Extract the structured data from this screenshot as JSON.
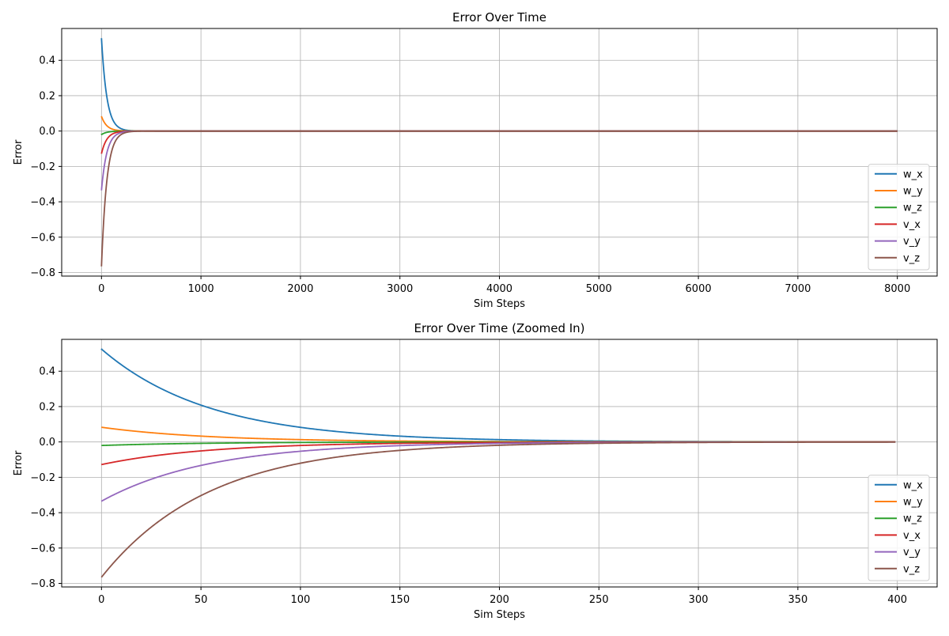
{
  "chart_data": [
    {
      "type": "line",
      "title": "Error Over Time",
      "xlabel": "Sim Steps",
      "ylabel": "Error",
      "xlim": [
        -400,
        8400
      ],
      "ylim": [
        -0.82,
        0.58
      ],
      "xticks": [
        0,
        1000,
        2000,
        3000,
        4000,
        5000,
        6000,
        7000,
        8000
      ],
      "yticks": [
        -0.8,
        -0.6,
        -0.4,
        -0.2,
        0.0,
        0.2,
        0.4
      ],
      "xtick_labels": [
        "0",
        "1000",
        "2000",
        "3000",
        "4000",
        "5000",
        "6000",
        "7000",
        "8000"
      ],
      "ytick_labels": [
        "−0.8",
        "−0.6",
        "−0.4",
        "−0.2",
        "0.0",
        "0.2",
        "0.4"
      ],
      "x_range": [
        0,
        8000
      ],
      "decay_rate": 0.0185,
      "grid": true,
      "legend_position": "lower right",
      "series": [
        {
          "name": "w_x",
          "initial": 0.525,
          "color": "#1f77b4"
        },
        {
          "name": "w_y",
          "initial": 0.083,
          "color": "#ff7f0e"
        },
        {
          "name": "w_z",
          "initial": -0.02,
          "color": "#2ca02c"
        },
        {
          "name": "v_x",
          "initial": -0.128,
          "color": "#d62728"
        },
        {
          "name": "v_y",
          "initial": -0.335,
          "color": "#9467bd"
        },
        {
          "name": "v_z",
          "initial": -0.765,
          "color": "#8c564b"
        }
      ]
    },
    {
      "type": "line",
      "title": "Error Over Time (Zoomed In)",
      "xlabel": "Sim Steps",
      "ylabel": "Error",
      "xlim": [
        -20,
        420
      ],
      "ylim": [
        -0.82,
        0.58
      ],
      "xticks": [
        0,
        50,
        100,
        150,
        200,
        250,
        300,
        350,
        400
      ],
      "yticks": [
        -0.8,
        -0.6,
        -0.4,
        -0.2,
        0.0,
        0.2,
        0.4
      ],
      "xtick_labels": [
        "0",
        "50",
        "100",
        "150",
        "200",
        "250",
        "300",
        "350",
        "400"
      ],
      "ytick_labels": [
        "−0.8",
        "−0.6",
        "−0.4",
        "−0.2",
        "0.0",
        "0.2",
        "0.4"
      ],
      "x_range": [
        0,
        399
      ],
      "decay_rate": 0.0185,
      "grid": true,
      "legend_position": "lower right",
      "series": [
        {
          "name": "w_x",
          "initial": 0.525,
          "color": "#1f77b4"
        },
        {
          "name": "w_y",
          "initial": 0.083,
          "color": "#ff7f0e"
        },
        {
          "name": "w_z",
          "initial": -0.02,
          "color": "#2ca02c"
        },
        {
          "name": "v_x",
          "initial": -0.128,
          "color": "#d62728"
        },
        {
          "name": "v_y",
          "initial": -0.335,
          "color": "#9467bd"
        },
        {
          "name": "v_z",
          "initial": -0.765,
          "color": "#8c564b"
        }
      ]
    }
  ]
}
